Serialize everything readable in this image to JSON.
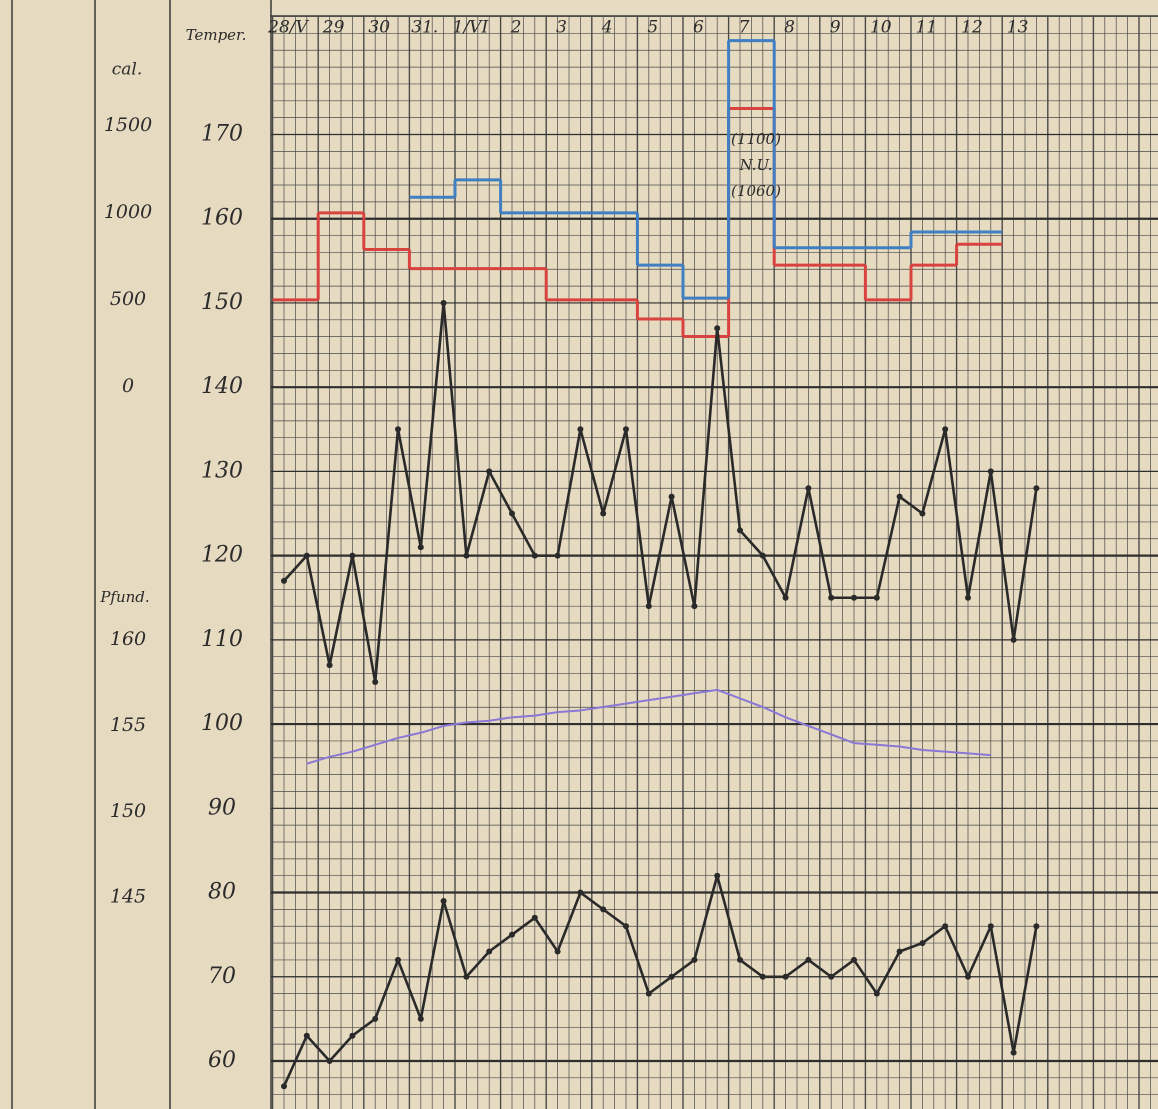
{
  "chart_data": {
    "type": "line",
    "y_label": "Temper.",
    "y2_label": "cal.",
    "y3_label": "Pfund.",
    "annotations": [
      "(1100)",
      "N.U.",
      "(1060)"
    ],
    "categories": [
      "28/V",
      null,
      "29",
      null,
      "30",
      null,
      "31.",
      null,
      "1/VI",
      null,
      "2",
      null,
      "3",
      null,
      "4",
      null,
      "5",
      null,
      "6",
      null,
      "7",
      null,
      "8",
      null,
      "9",
      null,
      "10",
      null,
      "11",
      null,
      "12",
      null,
      "13",
      null
    ],
    "ylim": [
      54.3,
      183
    ],
    "yticks": [
      60,
      70,
      80,
      90,
      100,
      110,
      120,
      130,
      140,
      150,
      160,
      170
    ],
    "y2lim": [
      -4150,
      2080
    ],
    "y2ticks": [
      0,
      500,
      1000,
      1500
    ],
    "y3lim": [
      132.7,
      195.8
    ],
    "y3ticks": [
      145,
      150,
      155,
      160
    ],
    "grid": true,
    "series": [
      {
        "color": "#d9433f",
        "axis": "y2",
        "step": true,
        "values": [
          500,
          500,
          1000,
          1000,
          790,
          790,
          680,
          680,
          680,
          680,
          680,
          680,
          500,
          500,
          500,
          500,
          390,
          390,
          290,
          290,
          1600,
          1600,
          700,
          700,
          700,
          700,
          500,
          500,
          700,
          700,
          820,
          820,
          null,
          null
        ]
      },
      {
        "color": "#3f7fc2",
        "axis": "y2",
        "step": true,
        "values": [
          null,
          null,
          null,
          null,
          null,
          null,
          1090,
          1090,
          1190,
          1190,
          1000,
          1000,
          1000,
          1000,
          1000,
          1000,
          700,
          700,
          510,
          510,
          1990,
          1990,
          800,
          800,
          800,
          800,
          800,
          800,
          890,
          890,
          890,
          890,
          null,
          null
        ]
      },
      {
        "color": "#2a2a2a",
        "axis": "y",
        "markers": true,
        "values": [
          117,
          120,
          107,
          120,
          105,
          135,
          121,
          150,
          120,
          130,
          125,
          120,
          120,
          135,
          125,
          135,
          114,
          127,
          114,
          147,
          123,
          120,
          115,
          128,
          115,
          115,
          115,
          127,
          125,
          135,
          115,
          130,
          110,
          128
        ]
      },
      {
        "color": "#8a78d6",
        "axis": "y3",
        "values": [
          null,
          152.8,
          153.2,
          153.5,
          153.9,
          154.3,
          154.6,
          155.0,
          155.2,
          155.3,
          155.5,
          155.6,
          155.8,
          155.9,
          156.1,
          156.3,
          156.5,
          156.7,
          156.9,
          157.1,
          156.6,
          156.1,
          155.5,
          155.0,
          154.5,
          154.0,
          153.9,
          153.8,
          153.6,
          153.5,
          153.4,
          153.3,
          null,
          null
        ]
      },
      {
        "color": "#2a2a2a",
        "axis": "y",
        "markers": true,
        "values": [
          57,
          63,
          60,
          63,
          65,
          72,
          65,
          79,
          70,
          73,
          75,
          77,
          73,
          80,
          78,
          76,
          68,
          70,
          72,
          82,
          72,
          70,
          70,
          72,
          70,
          72,
          68,
          73,
          74,
          76,
          70,
          76,
          61,
          76
        ]
      }
    ]
  }
}
